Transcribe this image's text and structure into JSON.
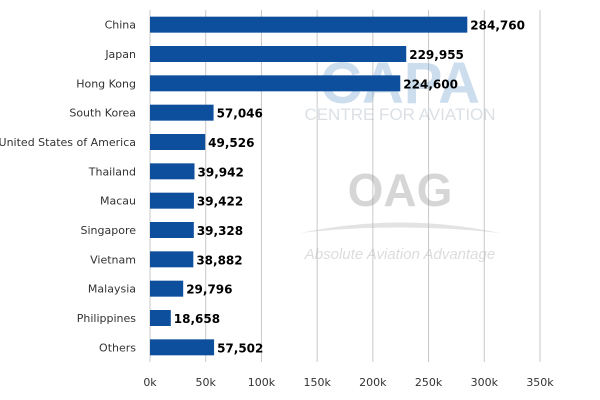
{
  "chart_data": {
    "type": "bar",
    "orientation": "horizontal",
    "categories": [
      "China",
      "Japan",
      "Hong Kong",
      "South Korea",
      "United States of America",
      "Thailand",
      "Macau",
      "Singapore",
      "Vietnam",
      "Malaysia",
      "Philippines",
      "Others"
    ],
    "values": [
      284760,
      229955,
      224600,
      57046,
      49526,
      39942,
      39422,
      39328,
      38882,
      29796,
      18658,
      57502
    ],
    "value_labels": [
      "284,760",
      "229,955",
      "224,600",
      "57,046",
      "49,526",
      "39,942",
      "39,422",
      "39,328",
      "38,882",
      "29,796",
      "18,658",
      "57,502"
    ],
    "x_ticks": [
      0,
      50000,
      100000,
      150000,
      200000,
      250000,
      300000,
      350000
    ],
    "x_tick_labels": [
      "0k",
      "50k",
      "100k",
      "150k",
      "200k",
      "250k",
      "300k",
      "350k"
    ],
    "xlim": [
      0,
      350000
    ],
    "grid": "vertical",
    "bar_color": "#0d4f9c",
    "title": "",
    "xlabel": "",
    "ylabel": ""
  },
  "watermarks": {
    "capa_logo": "CAPA",
    "capa_text": "CENTRE FOR AVIATION",
    "oag_logo": "OAG",
    "oag_tagline": "Absolute Aviation Advantage"
  }
}
